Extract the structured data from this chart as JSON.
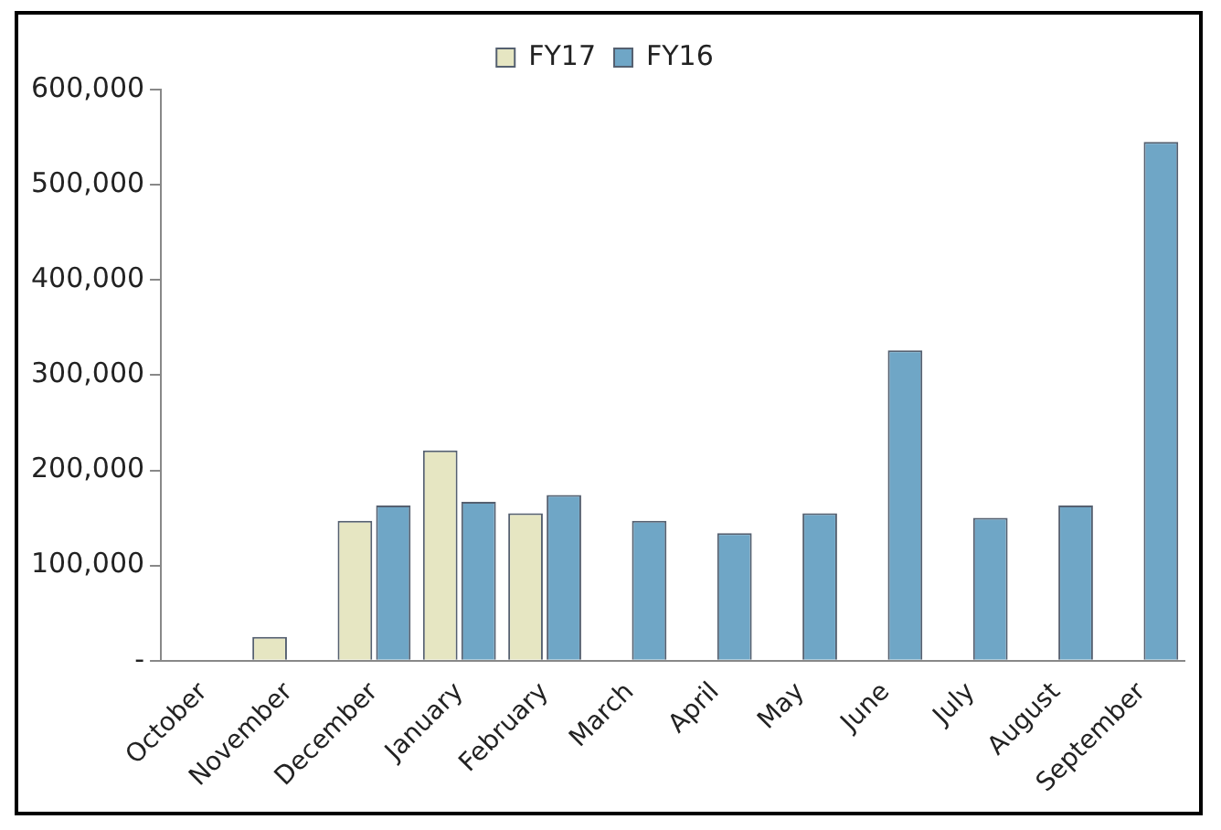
{
  "chart_data": {
    "type": "bar",
    "categories": [
      "October",
      "November",
      "December",
      "January",
      "February",
      "March",
      "April",
      "May",
      "June",
      "July",
      "August",
      "September"
    ],
    "series": [
      {
        "name": "FY17",
        "color": "#e6e6c2",
        "values": [
          null,
          25000,
          147000,
          221000,
          155000,
          null,
          null,
          null,
          null,
          null,
          null,
          null
        ]
      },
      {
        "name": "FY16",
        "color": "#6fa6c6",
        "values": [
          null,
          null,
          163000,
          167000,
          174000,
          147000,
          134000,
          155000,
          326000,
          150000,
          163000,
          545000
        ]
      }
    ],
    "ylim": [
      0,
      600000
    ],
    "yticks": [
      {
        "value": 0,
        "label": "-"
      },
      {
        "value": 100000,
        "label": "100,000"
      },
      {
        "value": 200000,
        "label": "200,000"
      },
      {
        "value": 300000,
        "label": "300,000"
      },
      {
        "value": 400000,
        "label": "400,000"
      },
      {
        "value": 500000,
        "label": "500,000"
      },
      {
        "value": 600000,
        "label": "600,000"
      }
    ],
    "grid": false,
    "legend": "top"
  }
}
